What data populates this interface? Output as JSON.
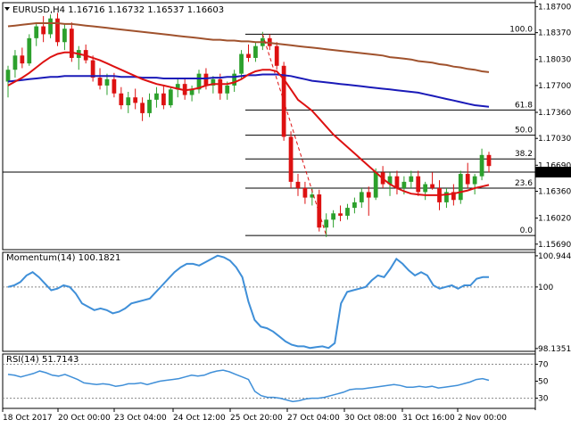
{
  "chart_data": [
    {
      "type": "candlestick",
      "header": "EURUSD,H4  1.16716 1.16732 1.16537 1.16603",
      "ylim": [
        1.1562,
        1.1875
      ],
      "y_ticks": [
        "1.18700",
        "1.18370",
        "1.18030",
        "1.17700",
        "1.17360",
        "1.17030",
        "1.16690",
        "1.16360",
        "1.16020",
        "1.15690"
      ],
      "y_tick_values": [
        1.187,
        1.1837,
        1.1803,
        1.177,
        1.1736,
        1.1703,
        1.1669,
        1.1636,
        1.1602,
        1.1569
      ],
      "current_price_label": "1.16603",
      "current_price": 1.16603,
      "fib_levels": [
        {
          "label": "100.0",
          "value": 1.1835
        },
        {
          "label": "61.8",
          "value": 1.1739
        },
        {
          "label": "50.0",
          "value": 1.1707
        },
        {
          "label": "38.2",
          "value": 1.1677
        },
        {
          "label": "23.6",
          "value": 1.164
        },
        {
          "label": "0.0",
          "value": 1.158
        }
      ],
      "candles": [
        {
          "o": 1.1775,
          "h": 1.1795,
          "l": 1.1755,
          "c": 1.179
        },
        {
          "o": 1.179,
          "h": 1.1815,
          "l": 1.178,
          "c": 1.1808
        },
        {
          "o": 1.1808,
          "h": 1.1818,
          "l": 1.1792,
          "c": 1.1798
        },
        {
          "o": 1.1798,
          "h": 1.1835,
          "l": 1.1795,
          "c": 1.183
        },
        {
          "o": 1.183,
          "h": 1.185,
          "l": 1.182,
          "c": 1.1845
        },
        {
          "o": 1.1845,
          "h": 1.1858,
          "l": 1.1825,
          "c": 1.1835
        },
        {
          "o": 1.1835,
          "h": 1.186,
          "l": 1.183,
          "c": 1.1855
        },
        {
          "o": 1.1855,
          "h": 1.1862,
          "l": 1.182,
          "c": 1.1825
        },
        {
          "o": 1.1825,
          "h": 1.1848,
          "l": 1.1815,
          "c": 1.1842
        },
        {
          "o": 1.1842,
          "h": 1.185,
          "l": 1.18,
          "c": 1.1805
        },
        {
          "o": 1.1805,
          "h": 1.182,
          "l": 1.179,
          "c": 1.1815
        },
        {
          "o": 1.1815,
          "h": 1.1822,
          "l": 1.1798,
          "c": 1.1802
        },
        {
          "o": 1.1802,
          "h": 1.1808,
          "l": 1.1775,
          "c": 1.178
        },
        {
          "o": 1.178,
          "h": 1.1792,
          "l": 1.1765,
          "c": 1.177
        },
        {
          "o": 1.177,
          "h": 1.1785,
          "l": 1.1758,
          "c": 1.1778
        },
        {
          "o": 1.1778,
          "h": 1.1786,
          "l": 1.1755,
          "c": 1.176
        },
        {
          "o": 1.176,
          "h": 1.1768,
          "l": 1.174,
          "c": 1.1745
        },
        {
          "o": 1.1745,
          "h": 1.1762,
          "l": 1.1735,
          "c": 1.1755
        },
        {
          "o": 1.1755,
          "h": 1.1766,
          "l": 1.174,
          "c": 1.1748
        },
        {
          "o": 1.1748,
          "h": 1.1755,
          "l": 1.1725,
          "c": 1.1735
        },
        {
          "o": 1.1735,
          "h": 1.176,
          "l": 1.173,
          "c": 1.1752
        },
        {
          "o": 1.1752,
          "h": 1.1768,
          "l": 1.1742,
          "c": 1.176
        },
        {
          "o": 1.176,
          "h": 1.177,
          "l": 1.174,
          "c": 1.1745
        },
        {
          "o": 1.1745,
          "h": 1.1768,
          "l": 1.1742,
          "c": 1.1765
        },
        {
          "o": 1.1765,
          "h": 1.178,
          "l": 1.1755,
          "c": 1.1772
        },
        {
          "o": 1.1772,
          "h": 1.1778,
          "l": 1.1752,
          "c": 1.1758
        },
        {
          "o": 1.1758,
          "h": 1.177,
          "l": 1.175,
          "c": 1.1765
        },
        {
          "o": 1.1765,
          "h": 1.179,
          "l": 1.176,
          "c": 1.1785
        },
        {
          "o": 1.1785,
          "h": 1.1792,
          "l": 1.1765,
          "c": 1.177
        },
        {
          "o": 1.177,
          "h": 1.1782,
          "l": 1.176,
          "c": 1.1778
        },
        {
          "o": 1.1778,
          "h": 1.1785,
          "l": 1.1752,
          "c": 1.176
        },
        {
          "o": 1.176,
          "h": 1.1775,
          "l": 1.1752,
          "c": 1.177
        },
        {
          "o": 1.177,
          "h": 1.179,
          "l": 1.1762,
          "c": 1.1785
        },
        {
          "o": 1.1785,
          "h": 1.1815,
          "l": 1.1778,
          "c": 1.181
        },
        {
          "o": 1.181,
          "h": 1.1822,
          "l": 1.18,
          "c": 1.1805
        },
        {
          "o": 1.1805,
          "h": 1.1825,
          "l": 1.18,
          "c": 1.182
        },
        {
          "o": 1.182,
          "h": 1.1838,
          "l": 1.1815,
          "c": 1.183
        },
        {
          "o": 1.183,
          "h": 1.1835,
          "l": 1.1815,
          "c": 1.182
        },
        {
          "o": 1.182,
          "h": 1.1825,
          "l": 1.179,
          "c": 1.1795
        },
        {
          "o": 1.1795,
          "h": 1.18,
          "l": 1.17,
          "c": 1.1705
        },
        {
          "o": 1.1705,
          "h": 1.1712,
          "l": 1.164,
          "c": 1.1648
        },
        {
          "o": 1.1648,
          "h": 1.1658,
          "l": 1.163,
          "c": 1.164
        },
        {
          "o": 1.164,
          "h": 1.1648,
          "l": 1.162,
          "c": 1.1628
        },
        {
          "o": 1.1628,
          "h": 1.164,
          "l": 1.1618,
          "c": 1.1632
        },
        {
          "o": 1.1632,
          "h": 1.1638,
          "l": 1.1585,
          "c": 1.159
        },
        {
          "o": 1.159,
          "h": 1.1608,
          "l": 1.1578,
          "c": 1.16
        },
        {
          "o": 1.16,
          "h": 1.1612,
          "l": 1.159,
          "c": 1.1608
        },
        {
          "o": 1.1608,
          "h": 1.1618,
          "l": 1.1598,
          "c": 1.1605
        },
        {
          "o": 1.1605,
          "h": 1.162,
          "l": 1.16,
          "c": 1.1615
        },
        {
          "o": 1.1615,
          "h": 1.1628,
          "l": 1.1608,
          "c": 1.1622
        },
        {
          "o": 1.1622,
          "h": 1.164,
          "l": 1.1615,
          "c": 1.1635
        },
        {
          "o": 1.1635,
          "h": 1.1642,
          "l": 1.1605,
          "c": 1.1628
        },
        {
          "o": 1.1628,
          "h": 1.1665,
          "l": 1.1625,
          "c": 1.166
        },
        {
          "o": 1.166,
          "h": 1.1668,
          "l": 1.164,
          "c": 1.1645
        },
        {
          "o": 1.1645,
          "h": 1.166,
          "l": 1.163,
          "c": 1.1655
        },
        {
          "o": 1.1655,
          "h": 1.1662,
          "l": 1.1632,
          "c": 1.164
        },
        {
          "o": 1.164,
          "h": 1.1655,
          "l": 1.1632,
          "c": 1.1648
        },
        {
          "o": 1.1648,
          "h": 1.1662,
          "l": 1.164,
          "c": 1.1655
        },
        {
          "o": 1.1655,
          "h": 1.1662,
          "l": 1.163,
          "c": 1.1635
        },
        {
          "o": 1.1635,
          "h": 1.1648,
          "l": 1.1625,
          "c": 1.1645
        },
        {
          "o": 1.1645,
          "h": 1.166,
          "l": 1.1638,
          "c": 1.164
        },
        {
          "o": 1.164,
          "h": 1.165,
          "l": 1.1612,
          "c": 1.1622
        },
        {
          "o": 1.1622,
          "h": 1.164,
          "l": 1.1615,
          "c": 1.1635
        },
        {
          "o": 1.1635,
          "h": 1.1645,
          "l": 1.1618,
          "c": 1.1625
        },
        {
          "o": 1.1625,
          "h": 1.1662,
          "l": 1.162,
          "c": 1.1658
        },
        {
          "o": 1.1658,
          "h": 1.1672,
          "l": 1.164,
          "c": 1.1645
        },
        {
          "o": 1.1645,
          "h": 1.1658,
          "l": 1.1632,
          "c": 1.1655
        },
        {
          "o": 1.1655,
          "h": 1.169,
          "l": 1.165,
          "c": 1.1682
        },
        {
          "o": 1.1682,
          "h": 1.1686,
          "l": 1.166,
          "c": 1.1668
        }
      ],
      "sma_red": [
        1.177,
        1.1775,
        1.178,
        1.1786,
        1.1793,
        1.18,
        1.1806,
        1.181,
        1.1812,
        1.1812,
        1.181,
        1.1808,
        1.1805,
        1.1802,
        1.1798,
        1.1794,
        1.179,
        1.1786,
        1.1782,
        1.1778,
        1.1775,
        1.1772,
        1.177,
        1.1768,
        1.1766,
        1.1764,
        1.1765,
        1.1767,
        1.177,
        1.1772,
        1.1772,
        1.1772,
        1.1774,
        1.1778,
        1.1784,
        1.1788,
        1.179,
        1.179,
        1.1788,
        1.1778,
        1.1765,
        1.1752,
        1.1745,
        1.1738,
        1.1728,
        1.1718,
        1.1708,
        1.17,
        1.1692,
        1.1684,
        1.1676,
        1.1668,
        1.166,
        1.1652,
        1.1645,
        1.164,
        1.1636,
        1.1633,
        1.1632,
        1.1631,
        1.1631,
        1.1631,
        1.1632,
        1.1633,
        1.1635,
        1.1637,
        1.164,
        1.1642,
        1.1644
      ],
      "sma_blue": [
        1.1775,
        1.1776,
        1.1777,
        1.1778,
        1.1779,
        1.178,
        1.1781,
        1.1781,
        1.1782,
        1.1782,
        1.1782,
        1.1782,
        1.1782,
        1.1782,
        1.1782,
        1.1782,
        1.1781,
        1.1781,
        1.1781,
        1.178,
        1.178,
        1.178,
        1.1779,
        1.1779,
        1.1779,
        1.1779,
        1.1779,
        1.1779,
        1.1779,
        1.178,
        1.178,
        1.1781,
        1.1781,
        1.1782,
        1.1783,
        1.1783,
        1.1784,
        1.1784,
        1.1784,
        1.1783,
        1.1782,
        1.178,
        1.1778,
        1.1776,
        1.1775,
        1.1774,
        1.1773,
        1.1772,
        1.1771,
        1.177,
        1.1769,
        1.1768,
        1.1767,
        1.1766,
        1.1765,
        1.1764,
        1.1763,
        1.1762,
        1.1761,
        1.1759,
        1.1757,
        1.1755,
        1.1753,
        1.1751,
        1.1749,
        1.1747,
        1.1745,
        1.1744,
        1.1743
      ],
      "sma_brown": [
        1.1845,
        1.1846,
        1.1847,
        1.1848,
        1.1849,
        1.1849,
        1.1849,
        1.1849,
        1.1848,
        1.1848,
        1.1847,
        1.1846,
        1.1845,
        1.1844,
        1.1843,
        1.1842,
        1.1841,
        1.184,
        1.1839,
        1.1838,
        1.1837,
        1.1836,
        1.1835,
        1.1834,
        1.1833,
        1.1832,
        1.1831,
        1.183,
        1.1829,
        1.1828,
        1.1828,
        1.1827,
        1.1827,
        1.1826,
        1.1826,
        1.1825,
        1.1825,
        1.1824,
        1.1823,
        1.1822,
        1.1821,
        1.182,
        1.1819,
        1.1818,
        1.1817,
        1.1816,
        1.1815,
        1.1814,
        1.1813,
        1.1812,
        1.1811,
        1.181,
        1.1809,
        1.1808,
        1.1806,
        1.1805,
        1.1804,
        1.1803,
        1.1801,
        1.18,
        1.1799,
        1.1797,
        1.1796,
        1.1794,
        1.1793,
        1.1791,
        1.179,
        1.1788,
        1.1787
      ]
    },
    {
      "type": "line",
      "header": "Momentum(14) 100.1821",
      "ylim": [
        98.05,
        101.05
      ],
      "y_ticks": [
        "100.9447",
        "100",
        "98.1351"
      ],
      "y_tick_values": [
        100.9447,
        100,
        98.1351
      ],
      "reference": 100,
      "values": [
        100.0,
        100.05,
        100.15,
        100.35,
        100.45,
        100.3,
        100.1,
        99.9,
        99.95,
        100.05,
        100.0,
        99.8,
        99.5,
        99.4,
        99.3,
        99.35,
        99.3,
        99.2,
        99.25,
        99.35,
        99.5,
        99.55,
        99.6,
        99.65,
        99.85,
        100.05,
        100.25,
        100.45,
        100.6,
        100.7,
        100.7,
        100.65,
        100.75,
        100.85,
        100.95,
        100.9,
        100.8,
        100.6,
        100.3,
        99.55,
        99.0,
        98.8,
        98.75,
        98.65,
        98.5,
        98.35,
        98.25,
        98.2,
        98.2,
        98.15,
        98.18,
        98.2,
        98.15,
        98.3,
        99.5,
        99.85,
        99.9,
        99.95,
        100.0,
        100.2,
        100.35,
        100.3,
        100.55,
        100.85,
        100.7,
        100.5,
        100.35,
        100.45,
        100.35,
        100.05,
        99.95,
        100.0,
        100.05,
        99.95,
        100.05,
        100.05,
        100.25,
        100.3,
        100.3
      ]
    },
    {
      "type": "line",
      "header": "RSI(14) 51.7143",
      "ylim": [
        18,
        82
      ],
      "y_ticks": [
        "70",
        "50",
        "30"
      ],
      "y_tick_values": [
        70,
        50,
        30
      ],
      "values": [
        58,
        57,
        55,
        57,
        59,
        62,
        60,
        57,
        56,
        58,
        55,
        52,
        48,
        47,
        46,
        47,
        46,
        44,
        45,
        47,
        47,
        48,
        46,
        48,
        50,
        51,
        52,
        53,
        55,
        57,
        56,
        57,
        60,
        62,
        63,
        61,
        58,
        55,
        52,
        38,
        33,
        31,
        31,
        30,
        28,
        26,
        27,
        29,
        30,
        30,
        31,
        33,
        35,
        37,
        40,
        41,
        41,
        42,
        43,
        44,
        45,
        46,
        45,
        43,
        43,
        44,
        43,
        44,
        42,
        43,
        44,
        45,
        47,
        49,
        52,
        53,
        51
      ]
    }
  ],
  "x_labels": [
    "18 Oct 2017",
    "20 Oct 00:00",
    "23 Oct 04:00",
    "24 Oct 12:00",
    "25 Oct 20:00",
    "27 Oct 04:00",
    "30 Oct 08:00",
    "31 Oct 16:00",
    "2 Nov 00:00"
  ],
  "colors": {
    "bull": "#2ca02c",
    "bear": "#dd1111",
    "sma_red": "#dd1111",
    "sma_blue": "#1a1ab8",
    "sma_brown": "#a0522d",
    "indicator": "#3f8fd8",
    "fib": "#000000",
    "trend": "#dd1111"
  }
}
